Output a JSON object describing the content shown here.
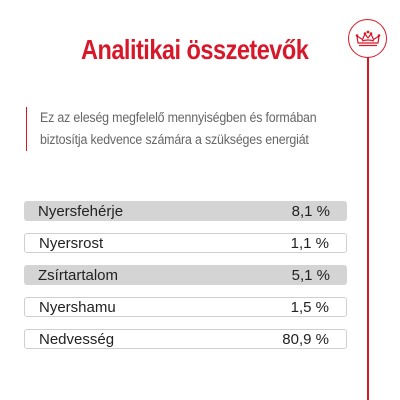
{
  "title": "Analitikai összetevők",
  "logo": {
    "icon": "royal-crown-icon",
    "color": "#d7182a"
  },
  "description": {
    "line1": "Ez az eleség megfelelő mennyiségben és formában",
    "line2": "biztosítja kedvence számára a szükséges energiát"
  },
  "nutrients": [
    {
      "name": "Nyersfehérje",
      "value": "8,1 %"
    },
    {
      "name": "Nyersrost",
      "value": "1,1 %"
    },
    {
      "name": "Zsírtartalom",
      "value": "5,1 %"
    },
    {
      "name": "Nyershamu",
      "value": "1,5 %"
    },
    {
      "name": "Nedvesség",
      "value": "80,9 %"
    }
  ],
  "colors": {
    "accent": "#d7182a",
    "row_shade": "#d4d4d4",
    "text": "#222222",
    "muted": "#666666"
  }
}
